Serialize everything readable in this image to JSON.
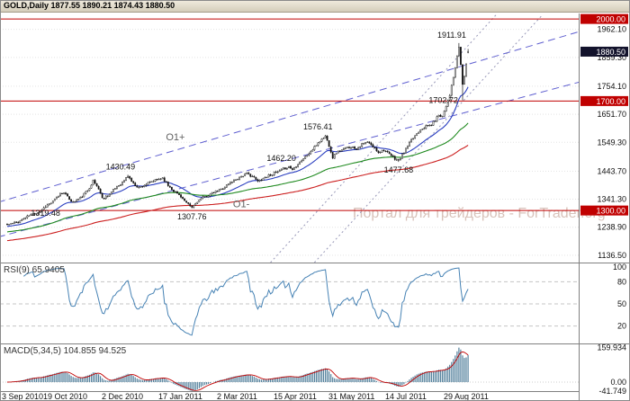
{
  "window": {
    "title": "GOLD,Daily 1877.55 1890.21 1874.43 1880.50"
  },
  "watermark": {
    "text": "Портал для трейдеров - ForTrader.org",
    "color": "#d8c2ba"
  },
  "colors": {
    "background": "#ffffff",
    "grid": "#e3e3e3",
    "separator": "#808080",
    "axis_text": "#101010",
    "candle_up": "#ffffff",
    "candle_down": "#151515",
    "candle_outline": "#151515",
    "hline_red": "#c00000",
    "badge_red": "#c00000",
    "badge_current": "#13132c",
    "channel_dashed": "#5f5fd0",
    "channel_dotted": "#9898b8",
    "ma_fast": "#2b3fc0",
    "ma_mid": "#1f8a1f",
    "ma_slow": "#cc2020",
    "rsi_line": "#4682b4",
    "macd_bar": "#54819c",
    "macd_signal": "#c00000",
    "annotation_gray": "#606060",
    "panel_label": "#333333"
  },
  "chart_data": [
    {
      "type": "candlestick",
      "symbol": "GOLD",
      "timeframe": "Daily",
      "ohlc": {
        "open": 1877.55,
        "high": 1890.21,
        "low": 1874.43,
        "close": 1880.5
      },
      "ylim": [
        1100,
        2020
      ],
      "y_ticks": [
        "1962.10",
        "1859.30",
        "1754.10",
        "1651.70",
        "1549.30",
        "1443.70",
        "1341.30",
        "1238.90",
        "1136.50"
      ],
      "h_lines": [
        "2000.00",
        "1700.00",
        "1300.00"
      ],
      "current_price_label": "1880.50",
      "x_ticks": [
        {
          "label": "3 Sep 2010",
          "i": 0
        },
        {
          "label": "19 Oct 2010",
          "i": 31
        },
        {
          "label": "2 Dec 2010",
          "i": 63
        },
        {
          "label": "17 Jan 2011",
          "i": 94
        },
        {
          "label": "2 Mar 2011",
          "i": 126
        },
        {
          "label": "15 Apr 2011",
          "i": 157
        },
        {
          "label": "31 May 2011",
          "i": 187
        },
        {
          "label": "14 Jul 2011",
          "i": 218
        },
        {
          "label": "29 Aug 2011",
          "i": 250
        }
      ],
      "bar_count": 253,
      "seed": 11,
      "anchors": [
        [
          0,
          1248
        ],
        [
          6,
          1258
        ],
        [
          12,
          1282
        ],
        [
          18,
          1297
        ],
        [
          21,
          1316
        ],
        [
          25,
          1332
        ],
        [
          29,
          1362
        ],
        [
          31,
          1368
        ],
        [
          33,
          1348
        ],
        [
          36,
          1330
        ],
        [
          40,
          1346
        ],
        [
          44,
          1374
        ],
        [
          47,
          1408
        ],
        [
          50,
          1380
        ],
        [
          52,
          1344
        ],
        [
          56,
          1360
        ],
        [
          60,
          1388
        ],
        [
          63,
          1402
        ],
        [
          66,
          1427
        ],
        [
          69,
          1398
        ],
        [
          72,
          1384
        ],
        [
          76,
          1396
        ],
        [
          80,
          1408
        ],
        [
          85,
          1420
        ],
        [
          88,
          1392
        ],
        [
          91,
          1372
        ],
        [
          95,
          1352
        ],
        [
          98,
          1326
        ],
        [
          101,
          1311
        ],
        [
          104,
          1334
        ],
        [
          108,
          1350
        ],
        [
          112,
          1362
        ],
        [
          117,
          1378
        ],
        [
          122,
          1402
        ],
        [
          127,
          1422
        ],
        [
          131,
          1434
        ],
        [
          134,
          1426
        ],
        [
          137,
          1406
        ],
        [
          140,
          1418
        ],
        [
          144,
          1432
        ],
        [
          148,
          1440
        ],
        [
          152,
          1455
        ],
        [
          154,
          1460
        ],
        [
          156,
          1450
        ],
        [
          159,
          1472
        ],
        [
          163,
          1496
        ],
        [
          167,
          1522
        ],
        [
          170,
          1548
        ],
        [
          174,
          1572
        ],
        [
          176,
          1538
        ],
        [
          178,
          1494
        ],
        [
          180,
          1512
        ],
        [
          184,
          1524
        ],
        [
          188,
          1534
        ],
        [
          191,
          1526
        ],
        [
          194,
          1542
        ],
        [
          197,
          1550
        ],
        [
          200,
          1532
        ],
        [
          203,
          1514
        ],
        [
          206,
          1522
        ],
        [
          209,
          1504
        ],
        [
          212,
          1490
        ],
        [
          214,
          1482
        ],
        [
          217,
          1514
        ],
        [
          220,
          1546
        ],
        [
          223,
          1574
        ],
        [
          226,
          1598
        ],
        [
          229,
          1607
        ],
        [
          232,
          1614
        ],
        [
          234,
          1630
        ],
        [
          236,
          1650
        ],
        [
          238,
          1645
        ],
        [
          240,
          1684
        ],
        [
          242,
          1724
        ],
        [
          243,
          1754
        ],
        [
          244,
          1786
        ],
        [
          245,
          1822
        ],
        [
          246,
          1861
        ],
        [
          247,
          1898
        ],
        [
          248,
          1832
        ],
        [
          249,
          1760
        ],
        [
          250,
          1792
        ],
        [
          251,
          1836
        ],
        [
          252,
          1878
        ]
      ],
      "swing_annotations": [
        {
          "label": "1319.48",
          "i": 21,
          "price": 1319.48,
          "kind": "high",
          "side": "below"
        },
        {
          "label": "1430.49",
          "i": 66,
          "price": 1430.49,
          "kind": "high",
          "side": "above"
        },
        {
          "label": "1307.76",
          "i": 101,
          "price": 1307.76,
          "kind": "low",
          "side": "below"
        },
        {
          "label": "1462.20",
          "i": 154,
          "price": 1462.2,
          "kind": "high",
          "side": "above"
        },
        {
          "label": "1576.41",
          "i": 174,
          "price": 1576.41,
          "kind": "high",
          "side": "above"
        },
        {
          "label": "1477.68",
          "i": 214,
          "price": 1477.68,
          "kind": "low",
          "side": "below"
        },
        {
          "label": "1702.72",
          "i": 249,
          "price": 1702.72,
          "kind": "low",
          "side": "left"
        },
        {
          "label": "1911.91",
          "i": 247,
          "price": 1911.91,
          "kind": "high",
          "side": "above"
        }
      ],
      "text_annotations": [
        {
          "text": "O1+",
          "i": 92,
          "price": 1557
        },
        {
          "text": "O1-",
          "i": 128,
          "price": 1312
        }
      ],
      "trend_lines": [
        {
          "i1": -5,
          "p1": 1203,
          "i2": 316,
          "p2": 1775,
          "style": "dashed"
        },
        {
          "i1": -5,
          "p1": 1330,
          "i2": 316,
          "p2": 1960,
          "style": "dashed"
        },
        {
          "i1": 144,
          "p1": 1110,
          "i2": 268,
          "p2": 2020,
          "style": "dotted"
        },
        {
          "i1": 168,
          "p1": 1110,
          "i2": 292,
          "p2": 2010,
          "style": "dotted"
        }
      ],
      "moving_averages": [
        {
          "period": 21,
          "start": 1242,
          "color_key": "ma_fast"
        },
        {
          "period": 75,
          "start": 1222,
          "color_key": "ma_mid"
        },
        {
          "period": 150,
          "start": 1190,
          "color_key": "ma_slow"
        }
      ]
    },
    {
      "type": "line",
      "name": "RSI",
      "label": "RSI(9) 65.9405",
      "period": 9,
      "value": 65.9405,
      "levels": [
        80,
        50,
        20
      ],
      "y_ticks": [
        "100",
        "80",
        "50",
        "20"
      ],
      "range": [
        0,
        100
      ]
    },
    {
      "type": "bar",
      "name": "MACD",
      "label": "MACD(5,34,5) 104.855 94.525",
      "fast": 5,
      "slow": 34,
      "signal_period": 5,
      "value": 104.855,
      "signal_value": 94.525,
      "max": 159.934,
      "min": -41.749,
      "y_ticks": [
        {
          "label": "159.934",
          "v": 159.934
        },
        {
          "label": "0.00",
          "v": 0
        },
        {
          "label": "-41.749",
          "v": -41.749
        }
      ]
    }
  ]
}
